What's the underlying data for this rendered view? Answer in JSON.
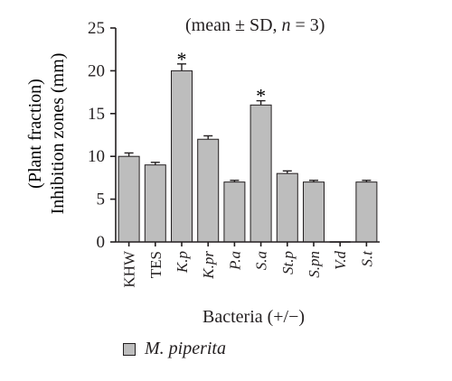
{
  "chart_data": {
    "type": "bar",
    "categories": [
      "KHW",
      "TES",
      "K.p",
      "K.pr",
      "P.a",
      "S.a",
      "St.p",
      "S.pn",
      "V.d",
      "S.t"
    ],
    "category_italic": [
      false,
      false,
      true,
      true,
      true,
      true,
      true,
      true,
      true,
      true
    ],
    "values": [
      10,
      9,
      20,
      12,
      7,
      16,
      8,
      7,
      0,
      7
    ],
    "errors": [
      0.4,
      0.3,
      0.8,
      0.4,
      0.2,
      0.5,
      0.3,
      0.2,
      0,
      0.2
    ],
    "significance": [
      "",
      "",
      "*",
      "",
      "",
      "*",
      "",
      "",
      "",
      ""
    ],
    "ylim": [
      0,
      25
    ],
    "yticks": [
      0,
      5,
      10,
      15,
      20,
      25
    ],
    "ylabel_line1": "(Plant fraction)",
    "ylabel_line2": "Inhibition zones (mm)",
    "xlabel": "Bacteria (+/−)",
    "annotation": {
      "prefix": "(mean ± SD, ",
      "n_symbol": "n",
      "suffix": " = 3)"
    },
    "series": [
      {
        "name": "M. piperita"
      }
    ],
    "grid": false,
    "legend_position": "bottom-left",
    "colors": {
      "bar": "#bdbdbd",
      "stroke": "#231f20"
    }
  }
}
